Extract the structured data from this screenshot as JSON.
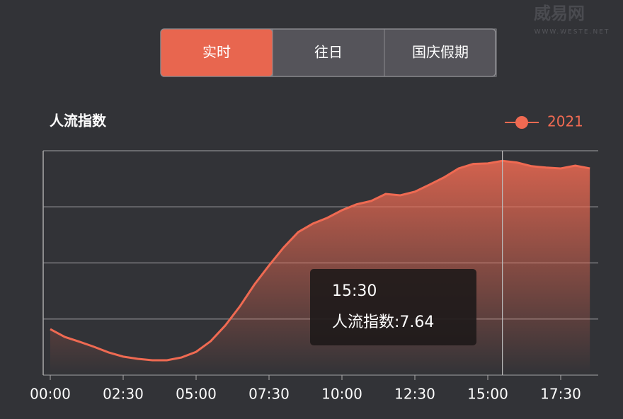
{
  "watermark": {
    "logo": "威易网",
    "url": "WWW.WESTE.NET"
  },
  "tabs": {
    "items": [
      "实时",
      "往日",
      "国庆假期"
    ],
    "active": 0
  },
  "chart_data": {
    "type": "line",
    "title": "人流指数",
    "categories": [
      "00:00",
      null,
      null,
      null,
      null,
      "02:30",
      null,
      null,
      null,
      null,
      "05:00",
      null,
      null,
      null,
      null,
      "07:30",
      null,
      null,
      null,
      null,
      "10:00",
      null,
      null,
      null,
      null,
      "12:30",
      null,
      null,
      null,
      null,
      "15:00",
      null,
      null,
      null,
      null,
      "17:30",
      null,
      null
    ],
    "series": [
      {
        "name": "2021",
        "color": "#ef6a52",
        "values": [
          1.64,
          1.36,
          1.19,
          1.01,
          0.81,
          0.66,
          0.58,
          0.53,
          0.53,
          0.63,
          0.83,
          1.21,
          1.77,
          2.45,
          3.23,
          3.91,
          4.55,
          5.1,
          5.4,
          5.61,
          5.88,
          6.09,
          6.21,
          6.46,
          6.41,
          6.54,
          6.79,
          7.05,
          7.37,
          7.53,
          7.55,
          7.64,
          7.58,
          7.45,
          7.4,
          7.37,
          7.47,
          7.37
        ]
      }
    ],
    "ylim": [
      0,
      8
    ],
    "yticks": [
      0,
      2,
      4,
      6,
      8
    ],
    "grid": true,
    "legend": "top-right",
    "tooltip": {
      "index": 31,
      "category": "15:30",
      "text": "人流指数:7.64"
    }
  }
}
